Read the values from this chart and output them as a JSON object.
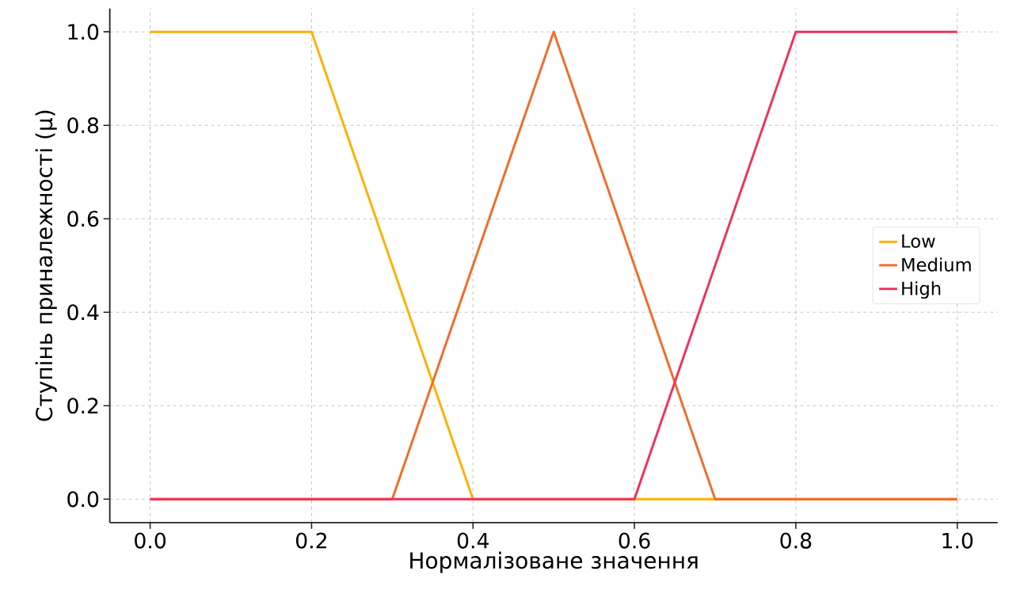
{
  "chart_data": {
    "type": "line",
    "xlabel": "Нормалізоване значення",
    "ylabel": "Ступінь приналежності (μ)",
    "xlim": [
      -0.05,
      1.05
    ],
    "ylim": [
      -0.05,
      1.05
    ],
    "xticks": [
      {
        "value": 0,
        "label": "0.0"
      },
      {
        "value": 0.2,
        "label": "0.2"
      },
      {
        "value": 0.4,
        "label": "0.4"
      },
      {
        "value": 0.6,
        "label": "0.6"
      },
      {
        "value": 0.8,
        "label": "0.8"
      },
      {
        "value": 1,
        "label": "1.0"
      }
    ],
    "yticks": [
      {
        "value": 0,
        "label": "0.0"
      },
      {
        "value": 0.2,
        "label": "0.2"
      },
      {
        "value": 0.4,
        "label": "0.4"
      },
      {
        "value": 0.6,
        "label": "0.6"
      },
      {
        "value": 0.8,
        "label": "0.8"
      },
      {
        "value": 1,
        "label": "1.0"
      }
    ],
    "grid": true,
    "legend": "right",
    "marker": "none",
    "line_style": "solid",
    "series": [
      {
        "name": "Low",
        "color": "#ffb000",
        "x": [
          0,
          0.2,
          0.4,
          1
        ],
        "values": [
          1,
          1,
          0,
          0
        ]
      },
      {
        "name": "Medium",
        "color": "#f26b2a",
        "x": [
          0,
          0.3,
          0.5,
          0.7,
          1
        ],
        "values": [
          0,
          0,
          1,
          0,
          0
        ]
      },
      {
        "name": "High",
        "color": "#f0325a",
        "x": [
          0,
          0.6,
          0.8,
          1
        ],
        "values": [
          0,
          0,
          1,
          1
        ]
      }
    ]
  }
}
